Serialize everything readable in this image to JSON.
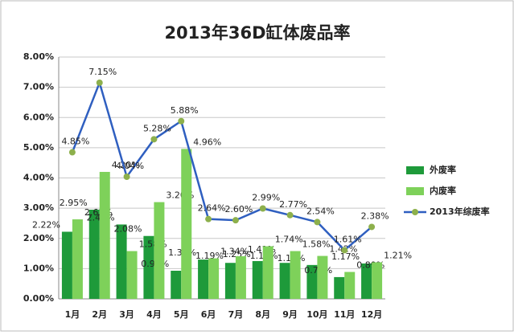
{
  "chart_data": {
    "type": "bar_line",
    "title": "2013年36D缸体废品率",
    "categories": [
      "1月",
      "2月",
      "3月",
      "4月",
      "5月",
      "6月",
      "7月",
      "8月",
      "9月",
      "10月",
      "11月",
      "12月"
    ],
    "series": [
      {
        "name": "外废率",
        "type": "bar",
        "color": "#1e9a3a",
        "values": [
          2.22,
          2.95,
          2.46,
          2.08,
          0.93,
          1.3,
          1.19,
          1.25,
          1.19,
          1.12,
          0.72,
          1.17
        ],
        "value_labels": [
          "2.22%",
          "2.95%",
          "2.46%",
          "2.08%",
          "0.93%",
          "1.30%",
          "1.19%",
          "1.25%",
          "1.19%",
          "1.12%",
          "0.72%",
          "1.17%"
        ]
      },
      {
        "name": "内废率",
        "type": "bar",
        "color": "#7ed15a",
        "values": [
          2.63,
          4.2,
          1.58,
          3.2,
          4.96,
          1.34,
          1.41,
          1.74,
          1.58,
          1.42,
          0.89,
          1.21
        ],
        "value_labels": [
          "2.63%",
          "4.20%",
          "1.58%",
          "3.20%",
          "4.96%",
          "1.34%",
          "1.41%",
          "1.74%",
          "1.58%",
          "1.42%",
          "0.89%",
          "1.21%"
        ]
      },
      {
        "name": "2013年综废率",
        "type": "line",
        "color": "#2f5fc0",
        "marker_color": "#8db04c",
        "values": [
          4.85,
          7.15,
          4.04,
          5.28,
          5.88,
          2.64,
          2.6,
          2.99,
          2.77,
          2.54,
          1.61,
          2.38
        ],
        "value_labels": [
          "4.85%",
          "7.15%",
          "4.04%",
          "5.28%",
          "5.88%",
          "2.64%",
          "2.60%",
          "2.99%",
          "2.77%",
          "2.54%",
          "1.61%",
          "2.38%"
        ]
      }
    ],
    "ylim": [
      0,
      8
    ],
    "yticks": [
      {
        "value": 0,
        "label": "0.00%"
      },
      {
        "value": 1,
        "label": "1.00%"
      },
      {
        "value": 2,
        "label": "2.00%"
      },
      {
        "value": 3,
        "label": "3.00%"
      },
      {
        "value": 4,
        "label": "4.00%"
      },
      {
        "value": 5,
        "label": "5.00%"
      },
      {
        "value": 6,
        "label": "6.00%"
      },
      {
        "value": 7,
        "label": "7.00%"
      },
      {
        "value": 8,
        "label": "8.00%"
      }
    ],
    "grid": true,
    "legend": "right"
  }
}
